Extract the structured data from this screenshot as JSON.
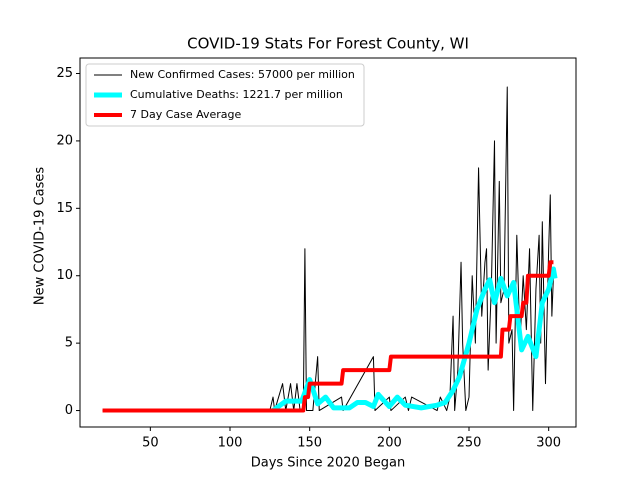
{
  "chart_data": {
    "type": "line",
    "title": "COVID-19 Stats For Forest County, WI",
    "xlabel": "Days Since 2020 Began",
    "ylabel": "New COVID-19 Cases",
    "xlim": [
      5.85,
      317.15
    ],
    "ylim": [
      -1.22,
      26.15
    ],
    "xticks": [
      50,
      100,
      150,
      200,
      250,
      300
    ],
    "yticks": [
      0,
      5,
      10,
      15,
      20,
      25
    ],
    "legend": "upper left",
    "series": [
      {
        "name": "New Confirmed Cases: 57000 per million",
        "color": "#000000",
        "width": 1,
        "x": [
          20,
          125,
          127,
          128,
          133,
          135,
          138,
          140,
          142,
          144,
          146,
          147,
          148,
          152,
          155,
          156,
          170,
          171,
          190,
          191,
          200,
          201,
          210,
          212,
          214,
          230,
          232,
          236,
          238,
          240,
          241,
          243,
          245,
          246,
          248,
          250,
          252,
          254,
          256,
          258,
          260,
          261,
          262,
          264,
          266,
          267,
          269,
          270,
          272,
          274,
          275,
          277,
          278,
          280,
          282,
          284,
          286,
          288,
          290,
          292,
          294,
          295,
          296,
          297,
          298,
          300,
          301,
          302,
          303
        ],
        "values": [
          0,
          0,
          1,
          0,
          2,
          0,
          2,
          0,
          2,
          0,
          0,
          12,
          0,
          0,
          4,
          0,
          1,
          0,
          4,
          0,
          1,
          0,
          1,
          0,
          1,
          0,
          1,
          0,
          1,
          7,
          0,
          3,
          11,
          5,
          0,
          1,
          10,
          5,
          18,
          7,
          11,
          12,
          3,
          9,
          20,
          5,
          17,
          8,
          9,
          24,
          5,
          6,
          0,
          13,
          5,
          10,
          6,
          12,
          0,
          9,
          13,
          5,
          14,
          8,
          2,
          12,
          16,
          7,
          10
        ]
      },
      {
        "name": "Cumulative Deaths: 1221.7 per million",
        "color": "#00ffff",
        "width": 5,
        "x": [
          127,
          135,
          145,
          150,
          155,
          160,
          165,
          175,
          180,
          185,
          190,
          193,
          200,
          205,
          210,
          220,
          230,
          235,
          240,
          244,
          250,
          255,
          260,
          263,
          266,
          270,
          274,
          278,
          283,
          287,
          292,
          296,
          300,
          303,
          304
        ],
        "values": [
          0,
          0.7,
          0.7,
          2.3,
          0.5,
          1,
          0.2,
          0.2,
          0.6,
          0.6,
          0.3,
          1.2,
          0.3,
          1,
          0.4,
          0.2,
          0.4,
          0.6,
          1.5,
          2.5,
          5,
          7.5,
          9,
          9.7,
          8,
          9.8,
          8.5,
          9.5,
          4.5,
          5.5,
          4,
          8,
          9,
          10.5,
          9.8
        ]
      },
      {
        "name": "7 Day Case Average",
        "color": "#ff0000",
        "width": 4,
        "x": [
          20,
          146,
          147,
          149,
          150,
          170,
          171,
          200,
          201,
          270,
          271,
          275,
          276,
          283,
          284,
          286,
          287,
          300,
          301,
          303
        ],
        "values": [
          0,
          0,
          1,
          1,
          2,
          2,
          3,
          3,
          4,
          4,
          6,
          6,
          7,
          7,
          8,
          8,
          10,
          10,
          11,
          11
        ]
      }
    ]
  }
}
